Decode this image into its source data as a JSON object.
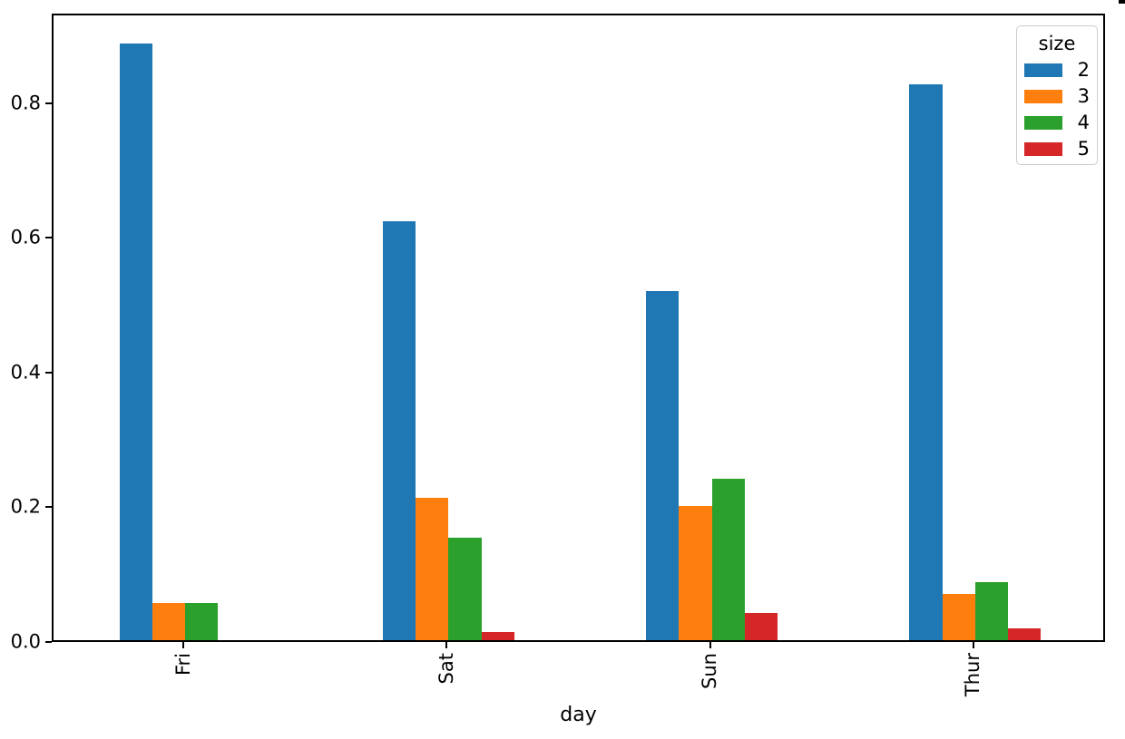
{
  "figure": {
    "background": "#ffffff",
    "spine_color": "#000000",
    "text_color": "#000000",
    "corner_artifact_color": "#000000"
  },
  "chart_data": {
    "type": "bar",
    "title": "",
    "xlabel": "day",
    "ylabel": "",
    "categories": [
      "Fri",
      "Sat",
      "Sun",
      "Thur"
    ],
    "series": [
      {
        "name": "2",
        "color": "#1f77b4",
        "values": [
          0.8889,
          0.6235,
          0.52,
          0.8276
        ]
      },
      {
        "name": "3",
        "color": "#ff7f0e",
        "values": [
          0.0556,
          0.2118,
          0.2,
          0.069
        ]
      },
      {
        "name": "4",
        "color": "#2ca02c",
        "values": [
          0.0556,
          0.1529,
          0.24,
          0.0862
        ]
      },
      {
        "name": "5",
        "color": "#d62728",
        "values": [
          0.0,
          0.0118,
          0.04,
          0.0172
        ]
      }
    ],
    "legend": {
      "title": "size",
      "position": "upper-right",
      "labels": [
        "2",
        "3",
        "4",
        "5"
      ]
    },
    "y_ticks": [
      "0.0",
      "0.2",
      "0.4",
      "0.6",
      "0.8"
    ],
    "y_tick_values": [
      0,
      0.2,
      0.4,
      0.6,
      0.8
    ],
    "ylim": [
      0,
      0.9333
    ],
    "x_tick_rotation_deg": 90,
    "grid": false,
    "bar_group_width_fraction": 0.5
  }
}
